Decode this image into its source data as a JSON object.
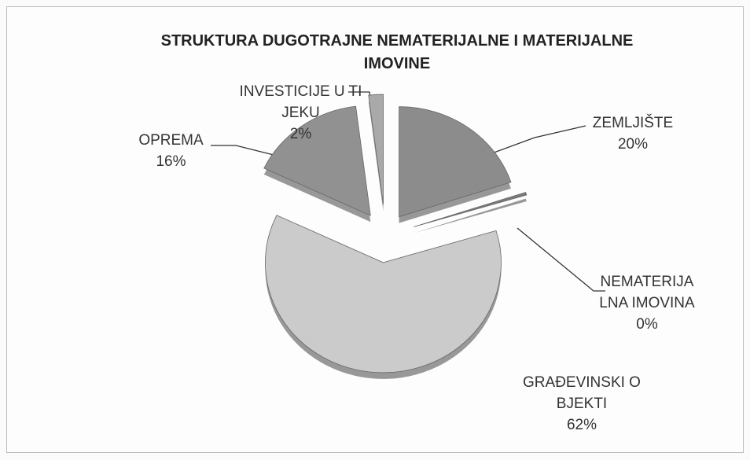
{
  "chart_data": {
    "type": "pie",
    "title": "STRUKTURA DUGOTRAJNE NEMATERIJALNE I MATERIJALNE IMOVINE",
    "categories": [
      "ZEMLJIŠTE",
      "NEMATERIJALNA IMOVINA",
      "GRAĐEVINSKI OBJEKTI",
      "OPREMA",
      "INVESTICIJE U TIJEKU"
    ],
    "values": [
      20,
      0.4,
      62,
      16,
      2
    ],
    "value_labels": [
      "20%",
      "0%",
      "62%",
      "16%",
      "2%"
    ],
    "colors": [
      "#8c8c8c",
      "#7a7a7a",
      "#cbcbcb",
      "#919191",
      "#a9a9a9"
    ]
  }
}
